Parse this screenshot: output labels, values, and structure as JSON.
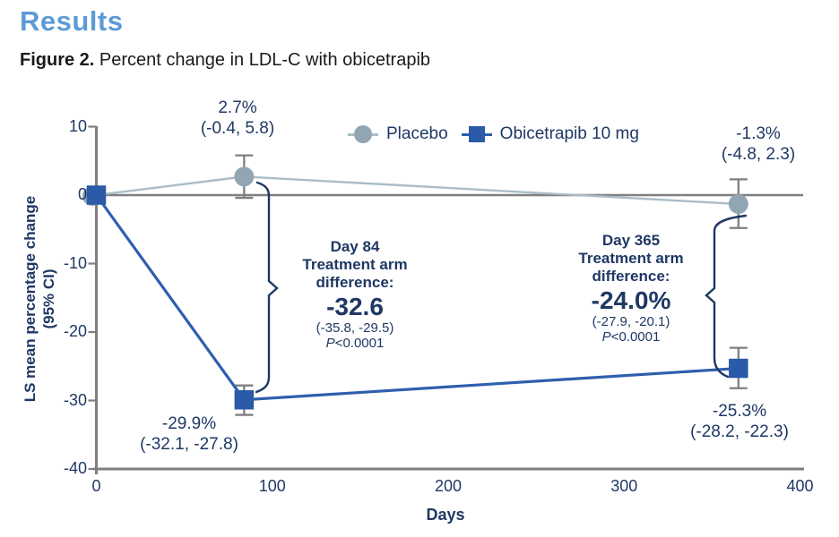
{
  "page": {
    "heading": "Results",
    "caption_bold": "Figure 2.",
    "caption_rest": " Percent change in LDL-C with obicetrapib"
  },
  "colors": {
    "heading_blue": "#5C9BD5",
    "navy_text": "#1F3864",
    "axis_gray": "#7F7F7F",
    "placebo_marker": "#92A5B3",
    "placebo_line": "#A9BDC7",
    "obicetrapib_marker": "#2A5AA8",
    "obicetrapib_line": "#2E5FAE"
  },
  "chart_data": {
    "type": "line",
    "title": "Figure 2. Percent change in LDL-C with obicetrapib",
    "xlabel": "Days",
    "ylabel": "LS mean percentage change (95% CI)",
    "ylabel_line1": "LS mean percentage change",
    "ylabel_line2": "(95% CI)",
    "xlim": [
      0,
      400
    ],
    "ylim": [
      -40,
      10
    ],
    "x_tick_values": [
      0,
      100,
      200,
      300,
      400
    ],
    "x_tick_labels": [
      "0",
      "100",
      "200",
      "300",
      "400"
    ],
    "y_tick_values": [
      10,
      0,
      -10,
      -20,
      -30,
      -40
    ],
    "y_tick_labels": [
      "10",
      "0",
      "-10",
      "-20",
      "-30",
      "-40"
    ],
    "grid": false,
    "legend_position": "top-center",
    "zero_line": true,
    "series": [
      {
        "name": "Placebo",
        "marker": "circle",
        "marker_color": "#92A5B3",
        "line_color": "#A9BDC7",
        "x": [
          0,
          84,
          365
        ],
        "y": [
          0,
          2.7,
          -1.3
        ],
        "ci_low": [
          null,
          -0.4,
          -4.8
        ],
        "ci_high": [
          null,
          5.8,
          2.3
        ]
      },
      {
        "name": "Obicetrapib 10 mg",
        "marker": "square",
        "marker_color": "#2A5AA8",
        "line_color": "#2E5FAE",
        "x": [
          0,
          84,
          365
        ],
        "y": [
          0,
          -29.9,
          -25.3
        ],
        "ci_low": [
          null,
          -32.1,
          -28.2
        ],
        "ci_high": [
          null,
          -27.8,
          -22.3
        ]
      }
    ],
    "point_labels": {
      "placebo_day84": {
        "value": "2.7%",
        "ci": "(-0.4, 5.8)"
      },
      "placebo_day365": {
        "value": "-1.3%",
        "ci": "(-4.8, 2.3)"
      },
      "obicetrapib_day84": {
        "value": "-29.9%",
        "ci": "(-32.1, -27.8)"
      },
      "obicetrapib_day365": {
        "value": "-25.3%",
        "ci": "(-28.2, -22.3)"
      }
    },
    "annotations": {
      "day84": {
        "line1": "Day 84",
        "line2": "Treatment arm",
        "line3": "difference:",
        "value": "-32.6",
        "ci": "(-35.8, -29.5)",
        "p_italic": "P",
        "p_rest": "<0.0001"
      },
      "day365": {
        "line1": "Day 365",
        "line2": "Treatment arm",
        "line3": "difference:",
        "value": "-24.0%",
        "ci": "(-27.9, -20.1)",
        "p_italic": "P",
        "p_rest": "<0.0001"
      }
    }
  }
}
